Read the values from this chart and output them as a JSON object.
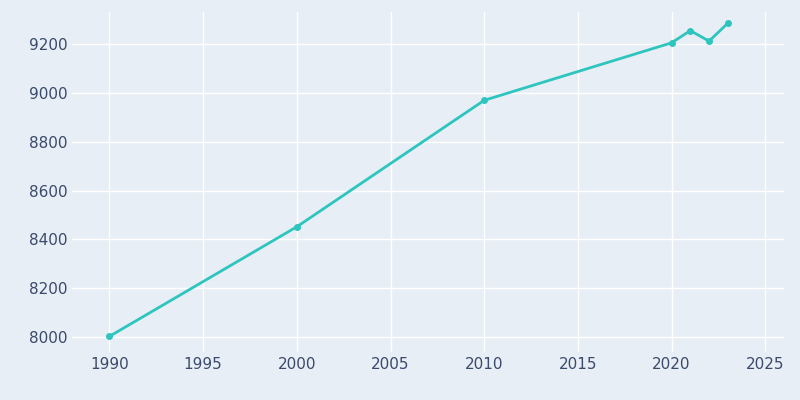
{
  "years": [
    1990,
    2000,
    2010,
    2020,
    2021,
    2022,
    2023
  ],
  "population": [
    8004,
    8452,
    8969,
    9204,
    9254,
    9211,
    9284
  ],
  "line_color": "#2dc5be",
  "line_width": 2.0,
  "marker": "o",
  "marker_size": 4,
  "background_color": "#e8eef5",
  "grid_color": "#ffffff",
  "tick_color": "#3a4a6b",
  "xlim": [
    1988,
    2026
  ],
  "ylim": [
    7940,
    9330
  ],
  "xticks": [
    1990,
    1995,
    2000,
    2005,
    2010,
    2015,
    2020,
    2025
  ],
  "yticks": [
    8000,
    8200,
    8400,
    8600,
    8800,
    9000,
    9200
  ],
  "title_fontsize": 13,
  "tick_fontsize": 11
}
